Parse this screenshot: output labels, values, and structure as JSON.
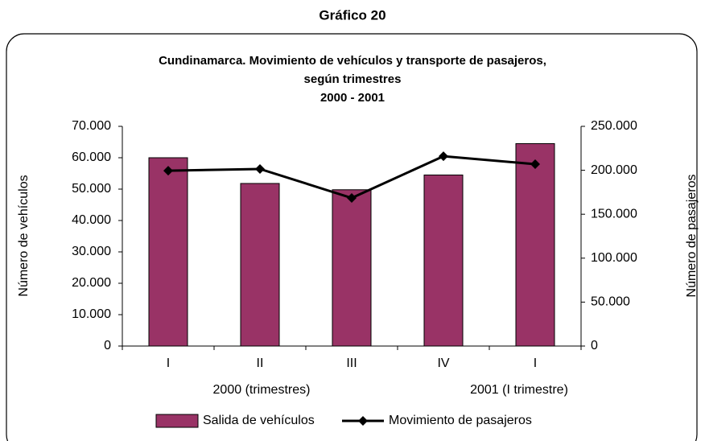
{
  "heading": "Gráfico 20",
  "chart_data": {
    "type": "bar_line",
    "title": [
      "Cundinamarca. Movimiento de vehículos y transporte de pasajeros,",
      "según trimestres",
      "2000 - 2001"
    ],
    "categories": [
      "I",
      "II",
      "III",
      "IV",
      "I"
    ],
    "category_groups": [
      "2000 (trimestres)",
      "2001 (I trimestre)"
    ],
    "ylabel": "Número de vehículos",
    "y2label": "Número de pasajeros",
    "ylim": [
      0,
      70000
    ],
    "yticks": [
      0,
      {
        "value": 10000,
        "label": "10.000"
      },
      {
        "value": 20000,
        "label": "20.000"
      },
      {
        "value": 30000,
        "label": "30.000"
      },
      {
        "value": 40000,
        "label": "40.000"
      },
      {
        "value": 50000,
        "label": "50.000"
      },
      {
        "value": 60000,
        "label": "60.000"
      },
      {
        "value": 70000,
        "label": "70.000"
      }
    ],
    "y2lim": [
      0,
      250000
    ],
    "y2ticks": [
      0,
      {
        "value": 50000,
        "label": "50.000"
      },
      {
        "value": 100000,
        "label": "100.000"
      },
      {
        "value": 150000,
        "label": "150.000"
      },
      {
        "value": 200000,
        "label": "200.000"
      },
      {
        "value": 250000,
        "label": "250.000"
      }
    ],
    "series": [
      {
        "name": "Salida de vehículos",
        "type": "bar",
        "color": "#993366",
        "values": [
          60000,
          51800,
          49800,
          54500,
          64500
        ]
      },
      {
        "name": "Movimiento de pasajeros",
        "type": "line",
        "color": "#000000",
        "axis": "y2",
        "values": [
          199500,
          201500,
          168500,
          216000,
          207000
        ]
      }
    ],
    "grid": false,
    "legend": "bottom"
  }
}
